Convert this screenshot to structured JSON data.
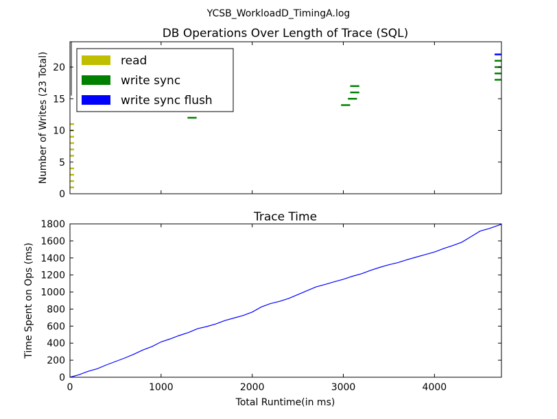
{
  "figure": {
    "suptitle": "YCSB_WorkloadD_TimingA.log"
  },
  "chart_data": [
    {
      "type": "bar",
      "orientation": "horizontal-segments",
      "title": "DB Operations Over Length of Trace (SQL)",
      "xlabel": "",
      "ylabel": "Number of Writes (23 Total)",
      "xlim": [
        0,
        4735
      ],
      "ylim": [
        0,
        24
      ],
      "yticks": [
        0,
        5,
        10,
        15,
        20
      ],
      "ytick_labels": [
        "0",
        "5",
        "10",
        "15",
        "20"
      ],
      "legend_position": "upper-left",
      "series": [
        {
          "name": "read",
          "color": "#bfbf00",
          "segments": [
            {
              "y": 1,
              "x_start": 0,
              "x_end": 45
            },
            {
              "y": 2,
              "x_start": 0,
              "x_end": 45
            },
            {
              "y": 3,
              "x_start": 0,
              "x_end": 45
            },
            {
              "y": 4,
              "x_start": 0,
              "x_end": 45
            },
            {
              "y": 6,
              "x_start": 0,
              "x_end": 45
            },
            {
              "y": 7,
              "x_start": 0,
              "x_end": 45
            },
            {
              "y": 8,
              "x_start": 0,
              "x_end": 45
            },
            {
              "y": 9,
              "x_start": 0,
              "x_end": 45
            },
            {
              "y": 10,
              "x_start": 0,
              "x_end": 45
            },
            {
              "y": 11,
              "x_start": 0,
              "x_end": 45
            }
          ]
        },
        {
          "name": "write sync",
          "color": "#008000",
          "segments": [
            {
              "y": 12,
              "x_start": 1290,
              "x_end": 1390
            },
            {
              "y": 14,
              "x_start": 2975,
              "x_end": 3075
            },
            {
              "y": 15,
              "x_start": 3050,
              "x_end": 3150
            },
            {
              "y": 16,
              "x_start": 3075,
              "x_end": 3175
            },
            {
              "y": 17,
              "x_start": 3075,
              "x_end": 3175
            },
            {
              "y": 18,
              "x_start": 4660,
              "x_end": 4735
            },
            {
              "y": 19,
              "x_start": 4660,
              "x_end": 4735
            },
            {
              "y": 20,
              "x_start": 4660,
              "x_end": 4735
            },
            {
              "y": 21,
              "x_start": 4660,
              "x_end": 4735
            }
          ]
        },
        {
          "name": "write sync flush",
          "color": "#0000ff",
          "segments": [
            {
              "y": 22,
              "x_start": 4660,
              "x_end": 4735
            }
          ]
        }
      ],
      "lines": [
        {
          "color": "#000000",
          "x": [
            15,
            15
          ],
          "y": [
            15.5,
            24
          ]
        }
      ]
    },
    {
      "type": "line",
      "title": "Trace Time",
      "xlabel": "Total Runtime(in ms)",
      "ylabel": "Time Spent on Ops (ms)",
      "xlim": [
        0,
        4735
      ],
      "ylim": [
        0,
        1800
      ],
      "xticks": [
        0,
        1000,
        2000,
        3000,
        4000
      ],
      "xtick_labels": [
        "0",
        "1000",
        "2000",
        "3000",
        "4000"
      ],
      "yticks": [
        0,
        200,
        400,
        600,
        800,
        1000,
        1200,
        1400,
        1600,
        1800
      ],
      "ytick_labels": [
        "0",
        "200",
        "400",
        "600",
        "800",
        "1000",
        "1200",
        "1400",
        "1600",
        "1800"
      ],
      "series": [
        {
          "color": "#0000ff",
          "x": [
            0,
            100,
            200,
            300,
            400,
            500,
            600,
            700,
            800,
            900,
            1000,
            1100,
            1200,
            1300,
            1400,
            1500,
            1600,
            1700,
            1800,
            1900,
            2000,
            2100,
            2200,
            2300,
            2400,
            2500,
            2600,
            2700,
            2800,
            2900,
            3000,
            3100,
            3200,
            3300,
            3400,
            3500,
            3600,
            3700,
            3800,
            3900,
            4000,
            4100,
            4200,
            4300,
            4400,
            4500,
            4600,
            4735
          ],
          "y": [
            0,
            30,
            70,
            100,
            145,
            185,
            225,
            270,
            320,
            360,
            415,
            450,
            490,
            525,
            570,
            595,
            625,
            665,
            695,
            725,
            765,
            825,
            865,
            890,
            925,
            970,
            1015,
            1060,
            1090,
            1120,
            1150,
            1185,
            1215,
            1255,
            1290,
            1320,
            1345,
            1380,
            1410,
            1440,
            1470,
            1510,
            1545,
            1585,
            1650,
            1715,
            1745,
            1795
          ]
        }
      ]
    }
  ]
}
